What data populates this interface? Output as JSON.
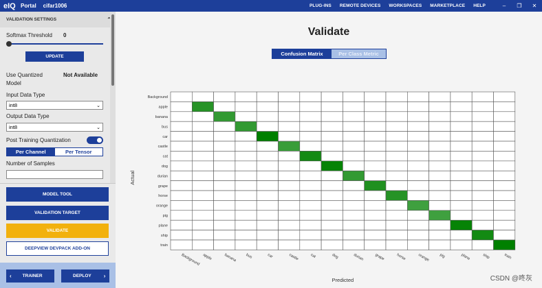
{
  "topbar": {
    "logo": "eIQ",
    "breadcrumb": [
      "Portal",
      "cifar1006"
    ],
    "nav": [
      "PLUG-INS",
      "REMOTE DEVICES",
      "WORKSPACES",
      "MARKETPLACE",
      "HELP"
    ],
    "window_controls": [
      "–",
      "❐",
      "✕"
    ]
  },
  "sidebar": {
    "section_title": "VALIDATION SETTINGS",
    "softmax_label": "Softmax Threshold",
    "softmax_value": "0",
    "softmax_level": 0,
    "update_button": "UPDATE",
    "use_quantized_label_1": "Use Quantized",
    "use_quantized_label_2": "Model",
    "use_quantized_value": "Not Available",
    "input_type_label": "Input Data Type",
    "input_type_value": "int8",
    "output_type_label": "Output Data Type",
    "output_type_value": "int8",
    "ptq_label": "Post Training Quantization",
    "ptq_enabled": true,
    "segment": [
      "Per Channel",
      "Per Tensor"
    ],
    "samples_label": "Number of Samples",
    "samples_value": "",
    "buttons": [
      "MODEL TOOL",
      "VALIDATION TARGET",
      "VALIDATE",
      "DEEPVIEW DEVPACK ADD-ON"
    ],
    "nav_prev": "TRAINER",
    "nav_next": "DEPLOY"
  },
  "main": {
    "title": "Validate",
    "tabs": [
      "Confusion Matrix",
      "Per Class Metric"
    ],
    "watermark": "CSDN @咚灰"
  },
  "colors": {
    "brand": "#1d3f9a",
    "accent": "#f2b10d"
  },
  "chart_data": {
    "type": "heatmap",
    "ylabel": "Actual",
    "xlabel": "Predicted",
    "categories": [
      "Background",
      "apple",
      "banana",
      "bus",
      "car",
      "castle",
      "cat",
      "dog",
      "durian",
      "grape",
      "horse",
      "orange",
      "pig",
      "plane",
      "ship",
      "train"
    ],
    "diagonal": [
      0,
      0.7,
      0.6,
      0.6,
      1.0,
      0.55,
      0.85,
      0.95,
      0.6,
      0.75,
      0.7,
      0.5,
      0.5,
      0.95,
      0.85,
      1.0
    ]
  }
}
